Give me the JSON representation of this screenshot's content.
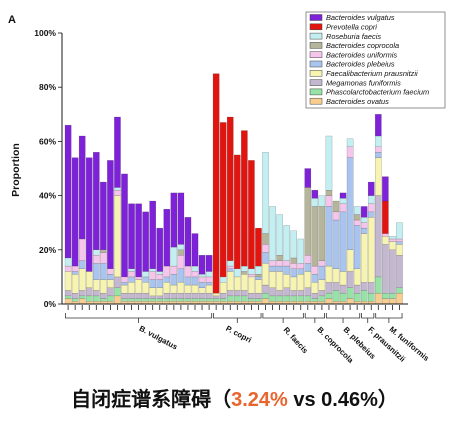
{
  "panel_label": "A",
  "caption": {
    "prefix": "自闭症谱系障碍（",
    "highlight": "3.24%",
    "suffix": " vs 0.46%）",
    "highlight_color": "#e8652f"
  },
  "chart_data": {
    "type": "bar",
    "stacked": true,
    "ylabel": "Proportion",
    "ylim": [
      0,
      100
    ],
    "y_ticks": [
      0,
      20,
      40,
      60,
      80,
      100
    ],
    "y_tick_labels": [
      "0%",
      "20%",
      "40%",
      "60%",
      "80%",
      "100%"
    ],
    "grid": false,
    "legend_position": "top-right",
    "series": [
      {
        "name": "Bacteroides vulgatus",
        "color": "#7d22d8"
      },
      {
        "name": "Prevotella copri",
        "color": "#e2140f"
      },
      {
        "name": "Roseburia faecis",
        "color": "#c4eff2"
      },
      {
        "name": "Bacteroides coprocola",
        "color": "#b5b59c"
      },
      {
        "name": "Bacteroides uniformis",
        "color": "#f5c5ec"
      },
      {
        "name": "Bacteroides plebeius",
        "color": "#a9c5ef"
      },
      {
        "name": "Faecalibacterium prausnitzii",
        "color": "#f7f3b1"
      },
      {
        "name": "Megamonas funiformis",
        "color": "#c3b8cf"
      },
      {
        "name": "Phascolarctobacterium faecium",
        "color": "#96e2a7"
      },
      {
        "name": "Bacteroides ovatus",
        "color": "#f8cd90"
      }
    ],
    "groups": [
      {
        "label": "B. vulgatus",
        "samples": [
          [
            49,
            0,
            3,
            0,
            2,
            0,
            7,
            2,
            1,
            2
          ],
          [
            40,
            0,
            0,
            0,
            2,
            1,
            7,
            2,
            1,
            1
          ],
          [
            38,
            0,
            0,
            0,
            8,
            3,
            8,
            2,
            1,
            2
          ],
          [
            42,
            0,
            0,
            0,
            0,
            0,
            6,
            3,
            2,
            1
          ],
          [
            36,
            0,
            2,
            0,
            3,
            6,
            4,
            2,
            2,
            1
          ],
          [
            25,
            0,
            0,
            1,
            4,
            6,
            5,
            2,
            1,
            1
          ],
          [
            40,
            0,
            0,
            0,
            2,
            2,
            3,
            3,
            2,
            1
          ],
          [
            26,
            0,
            1,
            0,
            2,
            0,
            30,
            4,
            3,
            3
          ],
          [
            38,
            0,
            0,
            0,
            2,
            1,
            3,
            2,
            1,
            1
          ],
          [
            24,
            0,
            1,
            0,
            2,
            2,
            4,
            2,
            1,
            1
          ],
          [
            27,
            0,
            0,
            0,
            1,
            0,
            5,
            2,
            1,
            1
          ],
          [
            22,
            0,
            2,
            0,
            0,
            2,
            4,
            2,
            1,
            1
          ],
          [
            25,
            0,
            1,
            0,
            3,
            3,
            3,
            1,
            1,
            1
          ],
          [
            16,
            0,
            1,
            0,
            2,
            3,
            3,
            1,
            1,
            1
          ],
          [
            21,
            0,
            0,
            0,
            4,
            2,
            4,
            2,
            1,
            1
          ],
          [
            20,
            0,
            7,
            0,
            3,
            4,
            3,
            2,
            1,
            1
          ],
          [
            19,
            0,
            2,
            2,
            5,
            5,
            4,
            2,
            1,
            1
          ],
          [
            18,
            0,
            0,
            0,
            4,
            3,
            3,
            2,
            1,
            1
          ],
          [
            12,
            0,
            2,
            0,
            2,
            3,
            3,
            2,
            1,
            1
          ],
          [
            7,
            0,
            1,
            0,
            2,
            2,
            2,
            2,
            1,
            1
          ],
          [
            6,
            0,
            2,
            0,
            2,
            1,
            3,
            2,
            1,
            1
          ]
        ]
      },
      {
        "label": "P. copri",
        "samples": [
          [
            0,
            81,
            0,
            0,
            0,
            0,
            1,
            1,
            1,
            1
          ],
          [
            0,
            57,
            2,
            0,
            0,
            0,
            4,
            2,
            1,
            1
          ],
          [
            0,
            53,
            2,
            0,
            1,
            1,
            7,
            2,
            2,
            1
          ],
          [
            0,
            42,
            3,
            0,
            0,
            0,
            5,
            2,
            2,
            1
          ],
          [
            0,
            50,
            2,
            1,
            0,
            0,
            6,
            2,
            2,
            1
          ],
          [
            0,
            40,
            2,
            0,
            1,
            0,
            6,
            2,
            1,
            1
          ],
          [
            0,
            14,
            3,
            1,
            0,
            1,
            5,
            2,
            1,
            1
          ]
        ]
      },
      {
        "label": "R. faecis",
        "samples": [
          [
            0,
            0,
            30,
            4,
            3,
            4,
            8,
            3,
            2,
            2
          ],
          [
            0,
            0,
            20,
            0,
            2,
            2,
            6,
            3,
            2,
            1
          ],
          [
            0,
            0,
            15,
            2,
            2,
            2,
            7,
            2,
            2,
            1
          ],
          [
            0,
            0,
            13,
            0,
            2,
            3,
            5,
            3,
            2,
            1
          ],
          [
            0,
            0,
            10,
            2,
            2,
            3,
            5,
            2,
            2,
            1
          ],
          [
            0,
            0,
            9,
            0,
            2,
            2,
            6,
            2,
            2,
            1
          ]
        ]
      },
      {
        "label": "B. coprocola",
        "samples": [
          [
            7,
            0,
            0,
            25,
            3,
            3,
            6,
            3,
            2,
            1
          ],
          [
            3,
            0,
            3,
            22,
            3,
            3,
            4,
            2,
            1,
            1
          ],
          [
            0,
            0,
            4,
            20,
            2,
            5,
            4,
            2,
            2,
            1
          ]
        ]
      },
      {
        "label": "B. plebeius",
        "samples": [
          [
            0,
            0,
            20,
            2,
            4,
            22,
            6,
            4,
            2,
            2
          ],
          [
            0,
            0,
            0,
            4,
            3,
            18,
            5,
            3,
            4,
            1
          ],
          [
            2,
            0,
            2,
            0,
            3,
            22,
            5,
            3,
            3,
            1
          ],
          [
            0,
            0,
            3,
            0,
            4,
            34,
            8,
            6,
            4,
            2
          ],
          [
            0,
            0,
            3,
            2,
            2,
            16,
            6,
            3,
            3,
            1
          ]
        ]
      },
      {
        "label": "F. prausnitzii",
        "samples": [
          [
            4,
            0,
            2,
            0,
            2,
            2,
            18,
            3,
            4,
            1
          ],
          [
            5,
            0,
            3,
            0,
            3,
            2,
            24,
            4,
            3,
            1
          ]
        ]
      },
      {
        "label": "M. funiformis",
        "samples": [
          [
            8,
            0,
            4,
            0,
            2,
            2,
            14,
            30,
            6,
            4
          ],
          [
            9,
            12,
            0,
            0,
            1,
            0,
            3,
            18,
            2,
            2
          ],
          [
            0,
            0,
            1,
            0,
            1,
            0,
            3,
            16,
            2,
            2
          ],
          [
            0,
            0,
            6,
            0,
            1,
            1,
            4,
            12,
            2,
            4
          ]
        ]
      }
    ]
  }
}
